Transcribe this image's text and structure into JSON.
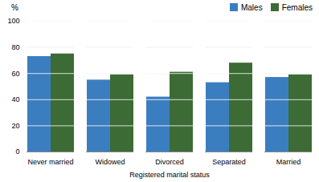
{
  "chart_data": {
    "type": "bar",
    "categories": [
      "Never married",
      "Widowed",
      "Divorced",
      "Separated",
      "Married"
    ],
    "series": [
      {
        "name": "Males",
        "color": "#3B7EC0",
        "values": [
          73,
          55,
          42,
          53,
          57
        ]
      },
      {
        "name": "Females",
        "color": "#3D6B35",
        "values": [
          75,
          59,
          61,
          68,
          59
        ]
      }
    ],
    "ylabel": "%",
    "xlabel": "Registered marital status",
    "ylim": [
      0,
      100
    ],
    "yticks": [
      0,
      20,
      40,
      60,
      80,
      100
    ],
    "grid": true,
    "legend": "top-right"
  }
}
